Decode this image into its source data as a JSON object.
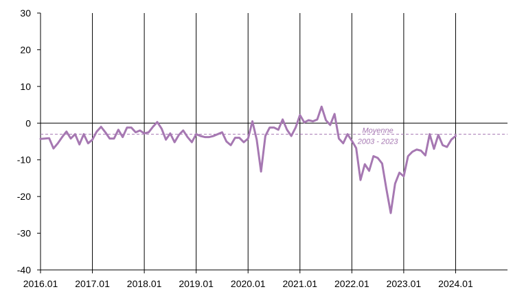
{
  "chart_data": {
    "type": "line",
    "title": "",
    "xlabel": "",
    "ylabel": "",
    "ylim": [
      -40,
      30
    ],
    "yticks": [
      30,
      20,
      10,
      0,
      -10,
      -20,
      -30,
      -40
    ],
    "x_range": [
      "2016.01",
      "2024.12"
    ],
    "x_tick_labels": [
      "2016.01",
      "2017.01",
      "2018.01",
      "2019.01",
      "2020.01",
      "2021.01",
      "2022.01",
      "2023.01",
      "2024.01"
    ],
    "vertical_gridlines_at": [
      "2017.01",
      "2018.01",
      "2019.01",
      "2020.01",
      "2021.01",
      "2022.01",
      "2023.01",
      "2024.01"
    ],
    "grid": "vertical",
    "legend": "none",
    "series": [
      {
        "color": "#a678b2",
        "x": [
          "2016.01",
          "2016.02",
          "2016.03",
          "2016.04",
          "2016.05",
          "2016.06",
          "2016.07",
          "2016.08",
          "2016.09",
          "2016.10",
          "2016.11",
          "2016.12",
          "2017.01",
          "2017.02",
          "2017.03",
          "2017.04",
          "2017.05",
          "2017.06",
          "2017.07",
          "2017.08",
          "2017.09",
          "2017.10",
          "2017.11",
          "2017.12",
          "2018.01",
          "2018.02",
          "2018.03",
          "2018.04",
          "2018.05",
          "2018.06",
          "2018.07",
          "2018.08",
          "2018.09",
          "2018.10",
          "2018.11",
          "2018.12",
          "2019.01",
          "2019.02",
          "2019.03",
          "2019.04",
          "2019.05",
          "2019.06",
          "2019.07",
          "2019.08",
          "2019.09",
          "2019.10",
          "2019.11",
          "2019.12",
          "2020.01",
          "2020.02",
          "2020.03",
          "2020.04",
          "2020.05",
          "2020.06",
          "2020.07",
          "2020.08",
          "2020.09",
          "2020.10",
          "2020.11",
          "2020.12",
          "2021.01",
          "2021.02",
          "2021.03",
          "2021.04",
          "2021.05",
          "2021.06",
          "2021.07",
          "2021.08",
          "2021.09",
          "2021.10",
          "2021.11",
          "2021.12",
          "2022.01",
          "2022.02",
          "2022.03",
          "2022.04",
          "2022.05",
          "2022.06",
          "2022.07",
          "2022.08",
          "2022.09",
          "2022.10",
          "2022.11",
          "2022.12",
          "2023.01",
          "2023.02",
          "2023.03",
          "2023.04",
          "2023.05",
          "2023.06",
          "2023.07",
          "2023.08",
          "2023.09",
          "2023.10",
          "2023.11",
          "2023.12",
          "2024.01"
        ],
        "values": [
          -4.3,
          -4.2,
          -4.1,
          -6.9,
          -5.5,
          -3.8,
          -2.3,
          -4.2,
          -3.0,
          -5.8,
          -3.0,
          -5.5,
          -4.5,
          -2.3,
          -1.0,
          -2.5,
          -4.2,
          -4.2,
          -1.8,
          -3.8,
          -1.2,
          -1.2,
          -2.5,
          -2.0,
          -2.8,
          -2.5,
          -1.0,
          0.3,
          -1.5,
          -4.5,
          -2.8,
          -5.2,
          -3.2,
          -2.0,
          -3.8,
          -5.2,
          -3.0,
          -3.5,
          -3.8,
          -3.8,
          -3.5,
          -3.0,
          -2.5,
          -5.0,
          -6.0,
          -4.0,
          -4.0,
          -5.2,
          -4.2,
          0.5,
          -4.5,
          -13.2,
          -3.5,
          -1.2,
          -1.2,
          -1.8,
          1.0,
          -1.8,
          -3.5,
          -1.2,
          2.2,
          0.2,
          0.8,
          0.5,
          1.0,
          4.5,
          0.8,
          -0.5,
          2.5,
          -4.2,
          -5.5,
          -3.0,
          -4.8,
          -6.8,
          -15.5,
          -11.2,
          -13.0,
          -9.0,
          -9.5,
          -11.0,
          -18.0,
          -24.5,
          -16.5,
          -13.5,
          -14.5,
          -9.0,
          -7.8,
          -7.2,
          -7.5,
          -8.8,
          -3.0,
          -7.0,
          -3.2,
          -6.0,
          -6.5,
          -4.5,
          -3.5
        ]
      }
    ],
    "reference_lines": [
      {
        "label": "Moyenne",
        "sublabel": "2003 - 2023",
        "value": -3.0,
        "style": "dashed",
        "color": "#a678b2"
      }
    ]
  }
}
